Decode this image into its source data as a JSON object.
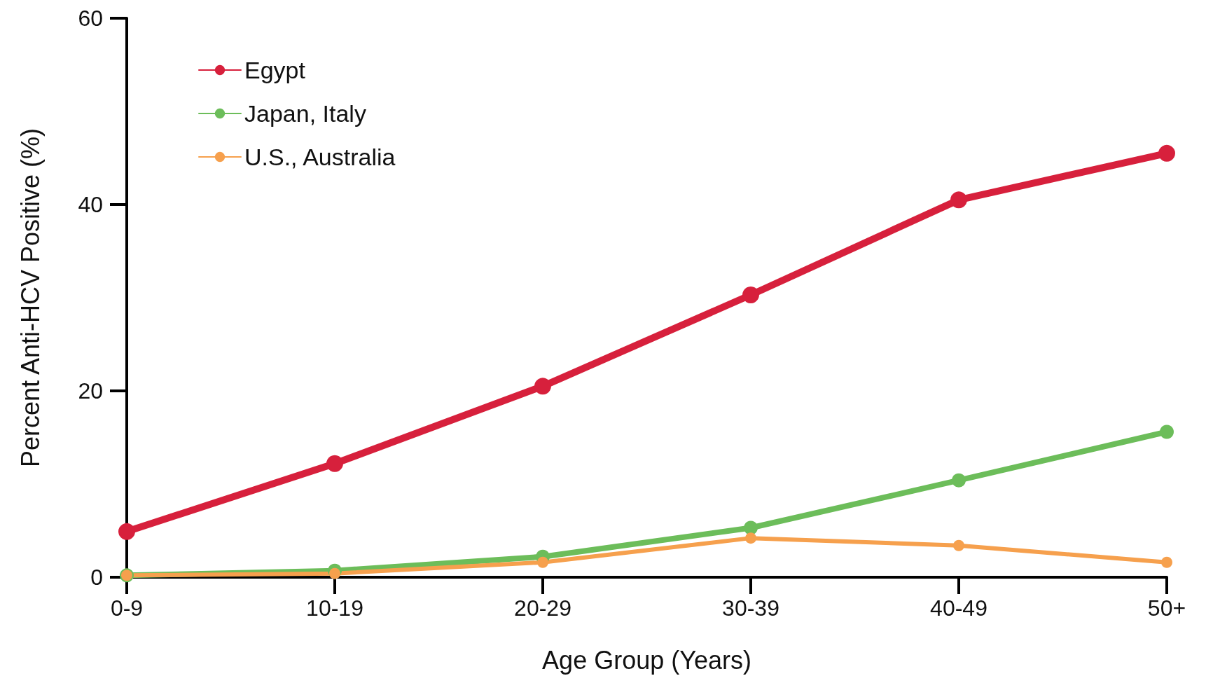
{
  "chart_data": {
    "type": "line",
    "xlabel": "Age Group (Years)",
    "ylabel": "Percent Anti-HCV Positive (%)",
    "categories": [
      "0-9",
      "10-19",
      "20-29",
      "30-39",
      "40-49",
      "50+"
    ],
    "series": [
      {
        "name": "Egypt",
        "color": "#d7203c",
        "values": [
          4.9,
          12.2,
          20.5,
          30.3,
          40.5,
          45.5
        ]
      },
      {
        "name": "Japan, Italy",
        "color": "#6cbd5a",
        "values": [
          0.2,
          0.7,
          2.2,
          5.3,
          10.4,
          15.6
        ]
      },
      {
        "name": "U.S., Australia",
        "color": "#f6a04d",
        "values": [
          0.2,
          0.4,
          1.6,
          4.2,
          3.4,
          1.6
        ]
      }
    ],
    "ylim": [
      0,
      60
    ],
    "yticks": [
      0,
      20,
      40,
      60
    ],
    "grid": false,
    "legend": "top left",
    "marker": "circle",
    "line_style": "solid"
  }
}
